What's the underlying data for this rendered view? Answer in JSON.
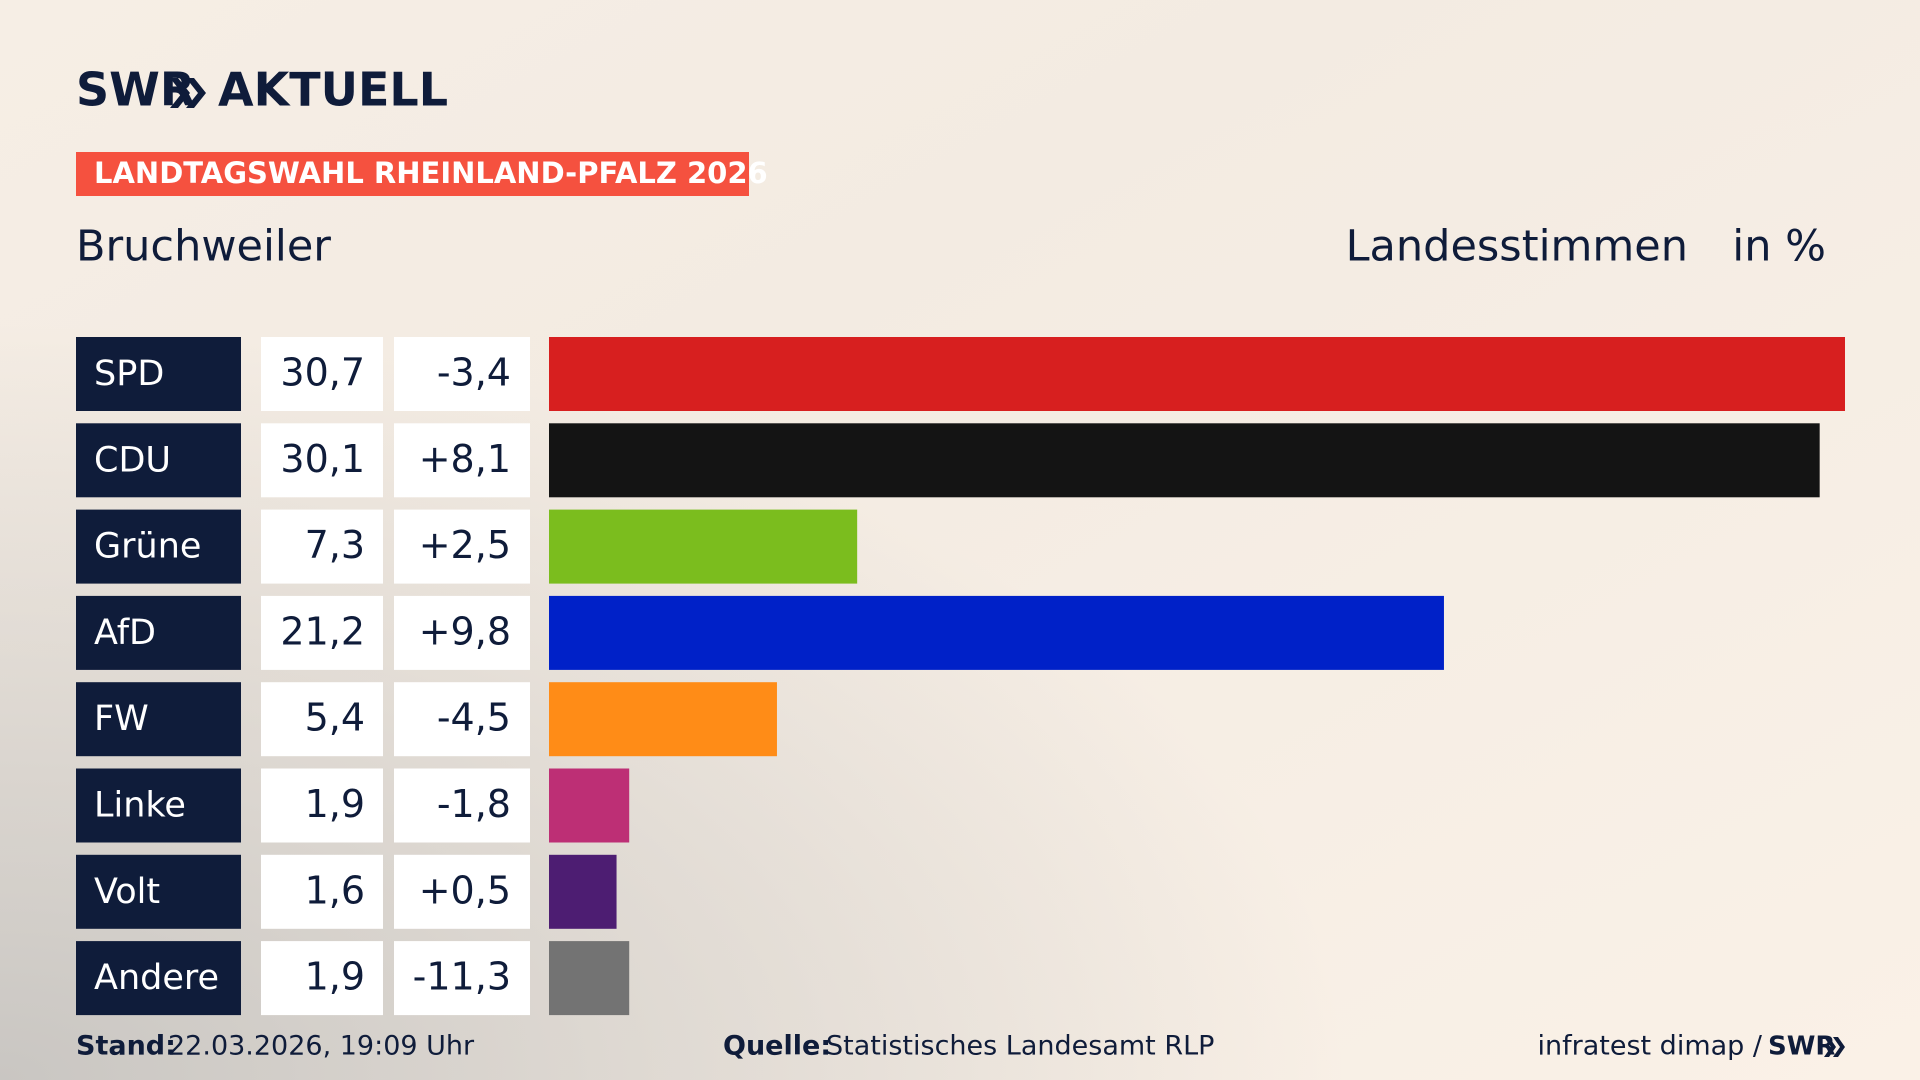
{
  "header": {
    "logo_left": "SWR",
    "logo_right": "AKTUELL",
    "tag": "LANDTAGSWAHL RHEINLAND-PFALZ 2026"
  },
  "chart_data": {
    "type": "bar",
    "orientation": "horizontal",
    "subtitle": "Bruchweiler",
    "measure": "Landesstimmen",
    "unit": "in %",
    "categories": [
      "SPD",
      "CDU",
      "Grüne",
      "AfD",
      "FW",
      "Linke",
      "Volt",
      "Andere"
    ],
    "values": [
      30.7,
      30.1,
      7.3,
      21.2,
      5.4,
      1.9,
      1.6,
      1.9
    ],
    "value_labels": [
      "30,7",
      "30,1",
      "7,3",
      "21,2",
      "5,4",
      "1,9",
      "1,6",
      "1,9"
    ],
    "change_labels": [
      "-3,4",
      "+8,1",
      "+2,5",
      "+9,8",
      "-4,5",
      "-1,8",
      "+0,5",
      "-11,3"
    ],
    "colors": [
      "#d71f1f",
      "#141414",
      "#7bbd1e",
      "#0021c8",
      "#ff8c17",
      "#bd2f75",
      "#4d1d72",
      "#737373"
    ]
  },
  "footer": {
    "stand_label": "Stand:",
    "stand": "22.03.2026, 19:09 Uhr",
    "source_label": "Quelle:",
    "source": "Statistisches Landesamt RLP",
    "credit": "infratest dimap /",
    "credit_logo": "SWR"
  }
}
